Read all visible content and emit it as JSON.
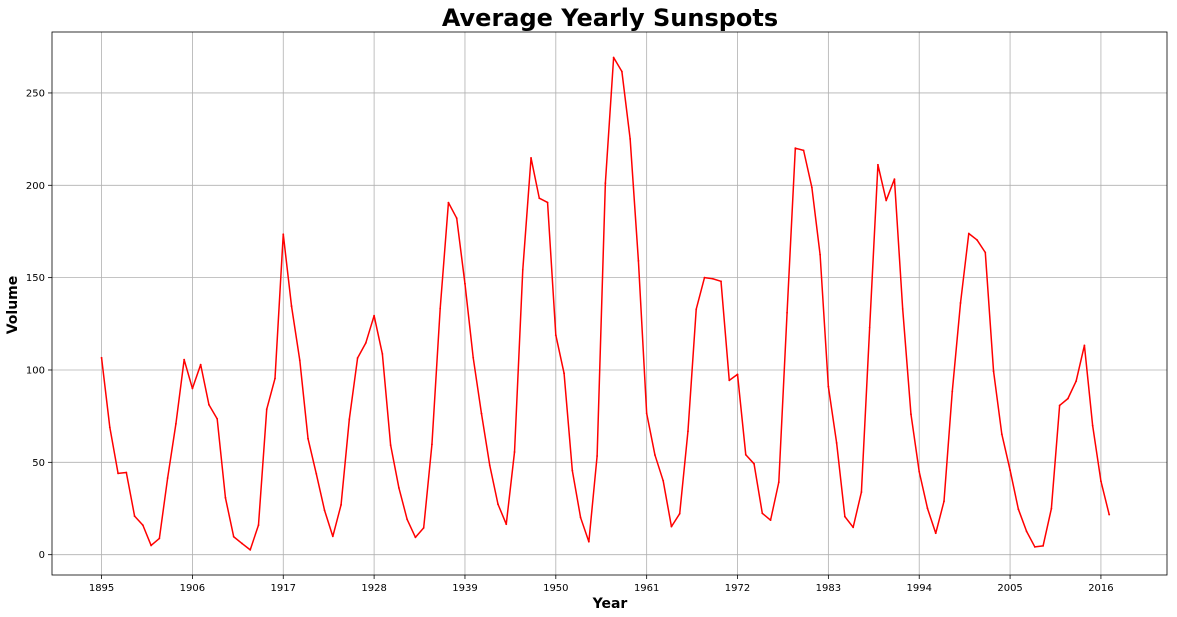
{
  "chart_data": {
    "type": "line",
    "title": "Average Yearly Sunspots",
    "xlabel": "Year",
    "ylabel": "Volume",
    "xlim": [
      1889,
      2024
    ],
    "ylim": [
      -11,
      283
    ],
    "xticks": [
      1895,
      1906,
      1917,
      1928,
      1939,
      1950,
      1961,
      1972,
      1983,
      1994,
      2005,
      2016
    ],
    "yticks": [
      0,
      50,
      100,
      150,
      200,
      250
    ],
    "grid": true,
    "line_color": "#ff0000",
    "series": [
      {
        "x": [
          1895,
          1896,
          1897,
          1898,
          1899,
          1900,
          1901,
          1902,
          1903,
          1904,
          1905,
          1906,
          1907,
          1908,
          1909,
          1910,
          1911,
          1912,
          1913,
          1914,
          1915,
          1916,
          1917,
          1918,
          1919,
          1920,
          1921,
          1922,
          1923,
          1924,
          1925,
          1926,
          1927,
          1928,
          1929,
          1930,
          1931,
          1932,
          1933,
          1934,
          1935,
          1936,
          1937,
          1938,
          1939,
          1940,
          1941,
          1942,
          1943,
          1944,
          1945,
          1946,
          1947,
          1948,
          1949,
          1950,
          1951,
          1952,
          1953,
          1954,
          1955,
          1956,
          1957,
          1958,
          1959,
          1960,
          1961,
          1962,
          1963,
          1964,
          1965,
          1966,
          1967,
          1968,
          1969,
          1970,
          1971,
          1972,
          1973,
          1974,
          1975,
          1976,
          1977,
          1978,
          1979,
          1980,
          1981,
          1982,
          1983,
          1984,
          1985,
          1986,
          1987,
          1988,
          1989,
          1990,
          1991,
          1992,
          1993,
          1994,
          1995,
          1996,
          1997,
          1998,
          1999,
          2000,
          2001,
          2002,
          2003,
          2004,
          2005,
          2006,
          2007,
          2008,
          2009,
          2010,
          2011,
          2012,
          2013,
          2014,
          2015,
          2016,
          2017
        ],
        "values": [
          106.6,
          69.0,
          44.0,
          44.5,
          20.9,
          16.0,
          5.0,
          8.8,
          41.5,
          70.8,
          105.6,
          90.0,
          102.9,
          81.2,
          73.5,
          30.8,
          9.7,
          6.1,
          2.6,
          16.0,
          78.8,
          95.4,
          173.5,
          134.6,
          105.3,
          62.8,
          43.8,
          24.0,
          9.9,
          27.0,
          73.4,
          106.5,
          114.7,
          129.4,
          108.7,
          59.3,
          36.2,
          19.1,
          9.4,
          14.5,
          59.7,
          133.3,
          190.6,
          182.2,
          146.7,
          106.6,
          76.4,
          48.4,
          27.3,
          16.5,
          55.6,
          154.2,
          214.8,
          193.0,
          190.7,
          118.9,
          98.2,
          45.5,
          20.1,
          7.0,
          53.4,
          201.2,
          269.2,
          261.6,
          225.1,
          159.1,
          76.5,
          54.0,
          40.0,
          15.2,
          22.2,
          66.8,
          132.9,
          150.0,
          149.4,
          148.0,
          94.4,
          97.6,
          54.1,
          49.2,
          22.4,
          18.7,
          39.3,
          131.0,
          220.1,
          218.9,
          198.9,
          162.4,
          91.0,
          60.5,
          20.6,
          14.8,
          33.9,
          123.0,
          211.1,
          191.8,
          203.3,
          133.0,
          76.1,
          44.9,
          25.1,
          11.6,
          28.9,
          88.3,
          136.3,
          173.9,
          170.4,
          163.6,
          99.3,
          65.3,
          45.8,
          24.7,
          12.6,
          4.2,
          4.8,
          24.9,
          80.8,
          84.5,
          94.0,
          113.3,
          69.8,
          39.8,
          21.7
        ]
      }
    ]
  }
}
